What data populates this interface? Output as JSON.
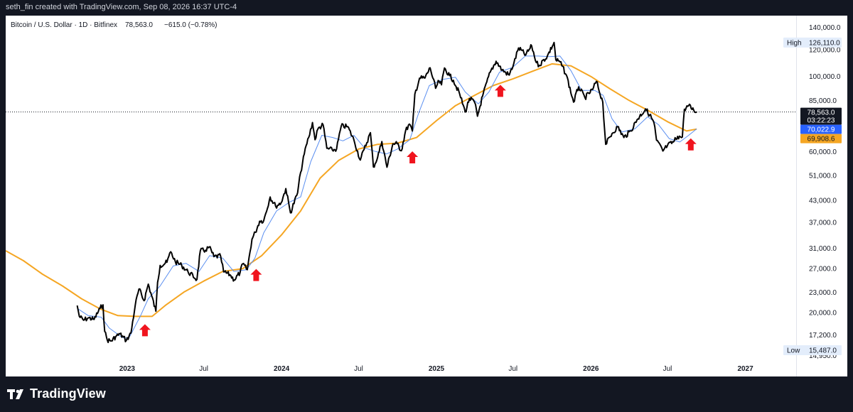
{
  "header": {
    "attribution": "seth_fin created with TradingView.com, Sep 08, 2026 16:37 UTC-4"
  },
  "legend": {
    "symbol": "Bitcoin / U.S. Dollar · 1D · Bitfinex",
    "last": "78,563.0",
    "change": "−615.0 (−0.78%)"
  },
  "brand": {
    "name": "TradingView"
  },
  "colors": {
    "price": "#000000",
    "ma_fast": "#5b8ff0",
    "ma_slow": "#f5a623",
    "arrow": "#f0141e",
    "last_bg": "#131722",
    "fast_bg": "#2962ff",
    "slow_bg": "#f5a623",
    "hl_bg": "#e3edfb"
  },
  "chart_data": {
    "type": "line",
    "y_scale": "log",
    "ylim": [
      13200,
      150000
    ],
    "xlim": [
      "2022-03-20",
      "2027-05-01"
    ],
    "y_ticks": [
      "14,950.0",
      "17,200.0",
      "20,000.0",
      "23,000.0",
      "27,000.0",
      "31,000.0",
      "37,000.0",
      "43,000.0",
      "51,000.0",
      "60,000.0",
      "70,000.0",
      "85,000.0",
      "100,000.0",
      "120,000.0",
      "140,000.0"
    ],
    "x_ticks": [
      {
        "label": "2023",
        "date": "2023-01-01",
        "bold": true
      },
      {
        "label": "Jul",
        "date": "2023-07-01",
        "bold": false
      },
      {
        "label": "2024",
        "date": "2024-01-01",
        "bold": true
      },
      {
        "label": "Jul",
        "date": "2024-07-01",
        "bold": false
      },
      {
        "label": "2025",
        "date": "2025-01-01",
        "bold": true
      },
      {
        "label": "Jul",
        "date": "2025-07-01",
        "bold": false
      },
      {
        "label": "2026",
        "date": "2026-01-01",
        "bold": true
      },
      {
        "label": "Jul",
        "date": "2026-07-01",
        "bold": false
      },
      {
        "label": "2027",
        "date": "2027-01-01",
        "bold": true
      }
    ],
    "series": [
      {
        "key": "price",
        "points": [
          [
            "2022-09-05",
            21000
          ],
          [
            "2022-09-10",
            19500
          ],
          [
            "2022-09-20",
            19000
          ],
          [
            "2022-10-01",
            19300
          ],
          [
            "2022-10-15",
            19100
          ],
          [
            "2022-10-29",
            20600
          ],
          [
            "2022-11-05",
            21100
          ],
          [
            "2022-11-09",
            17600
          ],
          [
            "2022-11-15",
            16600
          ],
          [
            "2022-11-25",
            16500
          ],
          [
            "2022-12-05",
            17000
          ],
          [
            "2022-12-15",
            17300
          ],
          [
            "2022-12-30",
            16550
          ],
          [
            "2023-01-10",
            17400
          ],
          [
            "2023-01-20",
            21000
          ],
          [
            "2023-01-29",
            23500
          ],
          [
            "2023-02-10",
            21700
          ],
          [
            "2023-02-20",
            24300
          ],
          [
            "2023-03-10",
            20200
          ],
          [
            "2023-03-14",
            24600
          ],
          [
            "2023-03-20",
            27600
          ],
          [
            "2023-04-05",
            28200
          ],
          [
            "2023-04-14",
            30300
          ],
          [
            "2023-04-25",
            28300
          ],
          [
            "2023-05-10",
            27600
          ],
          [
            "2023-05-25",
            26400
          ],
          [
            "2023-06-15",
            25100
          ],
          [
            "2023-06-23",
            30500
          ],
          [
            "2023-07-05",
            30600
          ],
          [
            "2023-07-14",
            31300
          ],
          [
            "2023-07-25",
            29300
          ],
          [
            "2023-08-10",
            29400
          ],
          [
            "2023-08-17",
            26400
          ],
          [
            "2023-09-01",
            25900
          ],
          [
            "2023-09-11",
            25000
          ],
          [
            "2023-09-25",
            26300
          ],
          [
            "2023-10-01",
            27900
          ],
          [
            "2023-10-12",
            26800
          ],
          [
            "2023-10-23",
            33000
          ],
          [
            "2023-10-31",
            34600
          ],
          [
            "2023-11-10",
            37300
          ],
          [
            "2023-11-20",
            37500
          ],
          [
            "2023-12-05",
            44000
          ],
          [
            "2023-12-18",
            41300
          ],
          [
            "2023-12-31",
            42300
          ],
          [
            "2024-01-11",
            46600
          ],
          [
            "2024-01-22",
            39500
          ],
          [
            "2024-02-08",
            45300
          ],
          [
            "2024-02-15",
            52000
          ],
          [
            "2024-02-28",
            62500
          ],
          [
            "2024-03-05",
            66000
          ],
          [
            "2024-03-14",
            73100
          ],
          [
            "2024-03-20",
            65000
          ],
          [
            "2024-03-27",
            70000
          ],
          [
            "2024-04-08",
            72000
          ],
          [
            "2024-04-17",
            61300
          ],
          [
            "2024-04-30",
            60600
          ],
          [
            "2024-05-10",
            61000
          ],
          [
            "2024-05-21",
            71400
          ],
          [
            "2024-06-05",
            71100
          ],
          [
            "2024-06-20",
            64900
          ],
          [
            "2024-07-05",
            56600
          ],
          [
            "2024-07-14",
            60800
          ],
          [
            "2024-07-29",
            68200
          ],
          [
            "2024-08-05",
            54000
          ],
          [
            "2024-08-15",
            57700
          ],
          [
            "2024-08-25",
            64200
          ],
          [
            "2024-09-06",
            53900
          ],
          [
            "2024-09-20",
            63200
          ],
          [
            "2024-09-30",
            63300
          ],
          [
            "2024-10-10",
            60300
          ],
          [
            "2024-10-20",
            69000
          ],
          [
            "2024-10-29",
            72300
          ],
          [
            "2024-11-05",
            69000
          ],
          [
            "2024-11-11",
            88700
          ],
          [
            "2024-11-22",
            98900
          ],
          [
            "2024-12-05",
            99000
          ],
          [
            "2024-12-17",
            106100
          ],
          [
            "2024-12-30",
            92300
          ],
          [
            "2025-01-07",
            96900
          ],
          [
            "2025-01-13",
            94500
          ],
          [
            "2025-01-20",
            106000
          ],
          [
            "2025-02-01",
            100600
          ],
          [
            "2025-02-10",
            97500
          ],
          [
            "2025-02-25",
            88700
          ],
          [
            "2025-03-10",
            78500
          ],
          [
            "2025-03-20",
            86000
          ],
          [
            "2025-04-01",
            84000
          ],
          [
            "2025-04-08",
            76300
          ],
          [
            "2025-04-20",
            87500
          ],
          [
            "2025-05-08",
            103000
          ],
          [
            "2025-05-22",
            111000
          ],
          [
            "2025-06-05",
            104500
          ],
          [
            "2025-06-22",
            101000
          ],
          [
            "2025-07-03",
            109500
          ],
          [
            "2025-07-14",
            121500
          ],
          [
            "2025-07-31",
            115800
          ],
          [
            "2025-08-14",
            123300
          ],
          [
            "2025-08-25",
            110000
          ],
          [
            "2025-09-01",
            108000
          ],
          [
            "2025-09-20",
            115000
          ],
          [
            "2025-10-06",
            126110
          ],
          [
            "2025-10-10",
            112000
          ],
          [
            "2025-10-20",
            110500
          ],
          [
            "2025-11-04",
            101000
          ],
          [
            "2025-11-21",
            84000
          ],
          [
            "2025-12-03",
            93200
          ],
          [
            "2025-12-18",
            86500
          ],
          [
            "2026-01-05",
            91500
          ],
          [
            "2026-01-14",
            96800
          ],
          [
            "2026-01-29",
            84000
          ],
          [
            "2026-02-05",
            63000
          ],
          [
            "2026-02-20",
            67800
          ],
          [
            "2026-03-05",
            71000
          ],
          [
            "2026-03-20",
            66000
          ],
          [
            "2026-04-05",
            69000
          ],
          [
            "2026-04-20",
            74500
          ],
          [
            "2026-05-10",
            80200
          ],
          [
            "2026-05-20",
            77000
          ],
          [
            "2026-05-30",
            73000
          ],
          [
            "2026-06-05",
            64800
          ],
          [
            "2026-06-20",
            60200
          ],
          [
            "2026-07-01",
            62500
          ],
          [
            "2026-07-15",
            64000
          ],
          [
            "2026-07-25",
            66500
          ],
          [
            "2026-08-05",
            66200
          ],
          [
            "2026-08-10",
            80000
          ],
          [
            "2026-08-20",
            82000
          ],
          [
            "2026-09-01",
            79500
          ],
          [
            "2026-09-08",
            78563
          ]
        ]
      },
      {
        "key": "ma_fast",
        "points": [
          [
            "2022-09-05",
            20600
          ],
          [
            "2022-10-01",
            19600
          ],
          [
            "2022-11-01",
            19400
          ],
          [
            "2022-11-20",
            18000
          ],
          [
            "2022-12-20",
            16900
          ],
          [
            "2023-01-05",
            16800
          ],
          [
            "2023-02-01",
            19500
          ],
          [
            "2023-02-20",
            22000
          ],
          [
            "2023-03-20",
            24000
          ],
          [
            "2023-04-20",
            27500
          ],
          [
            "2023-05-20",
            28000
          ],
          [
            "2023-06-20",
            26500
          ],
          [
            "2023-07-15",
            29500
          ],
          [
            "2023-08-15",
            29000
          ],
          [
            "2023-09-10",
            26500
          ],
          [
            "2023-10-10",
            26800
          ],
          [
            "2023-10-30",
            29000
          ],
          [
            "2023-11-20",
            34500
          ],
          [
            "2023-12-20",
            40000
          ],
          [
            "2024-01-20",
            42500
          ],
          [
            "2024-02-15",
            44000
          ],
          [
            "2024-03-10",
            56000
          ],
          [
            "2024-04-05",
            67000
          ],
          [
            "2024-05-01",
            66000
          ],
          [
            "2024-05-25",
            64500
          ],
          [
            "2024-06-20",
            67000
          ],
          [
            "2024-07-15",
            61500
          ],
          [
            "2024-08-10",
            60000
          ],
          [
            "2024-09-05",
            59000
          ],
          [
            "2024-10-01",
            61000
          ],
          [
            "2024-10-30",
            65000
          ],
          [
            "2024-11-20",
            78000
          ],
          [
            "2024-12-15",
            94000
          ],
          [
            "2025-01-15",
            98000
          ],
          [
            "2025-02-15",
            99500
          ],
          [
            "2025-03-10",
            90000
          ],
          [
            "2025-04-10",
            83000
          ],
          [
            "2025-05-05",
            90000
          ],
          [
            "2025-05-30",
            103000
          ],
          [
            "2025-06-30",
            106500
          ],
          [
            "2025-07-30",
            115000
          ],
          [
            "2025-08-30",
            115000
          ],
          [
            "2025-09-25",
            114500
          ],
          [
            "2025-10-20",
            115000
          ],
          [
            "2025-11-15",
            104000
          ],
          [
            "2025-12-10",
            91000
          ],
          [
            "2026-01-10",
            91000
          ],
          [
            "2026-01-30",
            88000
          ],
          [
            "2026-02-20",
            75000
          ],
          [
            "2026-03-15",
            68500
          ],
          [
            "2026-04-15",
            70000
          ],
          [
            "2026-05-15",
            76000
          ],
          [
            "2026-06-10",
            72000
          ],
          [
            "2026-07-05",
            65500
          ],
          [
            "2026-07-30",
            64000
          ],
          [
            "2026-08-20",
            67000
          ],
          [
            "2026-09-08",
            70022.9
          ]
        ]
      },
      {
        "key": "ma_slow",
        "points": [
          [
            "2022-03-20",
            30500
          ],
          [
            "2022-05-01",
            28500
          ],
          [
            "2022-06-15",
            26000
          ],
          [
            "2022-08-01",
            24000
          ],
          [
            "2022-09-15",
            22000
          ],
          [
            "2022-10-30",
            20500
          ],
          [
            "2022-12-10",
            19600
          ],
          [
            "2023-01-20",
            19500
          ],
          [
            "2023-03-01",
            19500
          ],
          [
            "2023-04-01",
            21000
          ],
          [
            "2023-05-15",
            23000
          ],
          [
            "2023-07-01",
            24800
          ],
          [
            "2023-08-15",
            26500
          ],
          [
            "2023-10-01",
            27000
          ],
          [
            "2023-11-15",
            29500
          ],
          [
            "2024-01-01",
            34000
          ],
          [
            "2024-02-15",
            40000
          ],
          [
            "2024-04-01",
            50000
          ],
          [
            "2024-05-15",
            56500
          ],
          [
            "2024-07-01",
            61000
          ],
          [
            "2024-08-15",
            63000
          ],
          [
            "2024-10-01",
            63500
          ],
          [
            "2024-11-15",
            66000
          ],
          [
            "2025-01-01",
            74000
          ],
          [
            "2025-02-15",
            82000
          ],
          [
            "2025-04-01",
            88000
          ],
          [
            "2025-05-15",
            94000
          ],
          [
            "2025-07-01",
            98500
          ],
          [
            "2025-08-15",
            103500
          ],
          [
            "2025-10-01",
            109000
          ],
          [
            "2025-11-15",
            107500
          ],
          [
            "2026-01-01",
            100000
          ],
          [
            "2026-02-15",
            92000
          ],
          [
            "2026-04-01",
            85000
          ],
          [
            "2026-05-15",
            79500
          ],
          [
            "2026-07-01",
            73500
          ],
          [
            "2026-08-15",
            69000
          ],
          [
            "2026-09-08",
            69908.6
          ]
        ]
      }
    ],
    "markers": [
      {
        "date": "2023-02-12",
        "value": 17700,
        "label": "up-arrow"
      },
      {
        "date": "2023-11-02",
        "value": 25800,
        "label": "up-arrow"
      },
      {
        "date": "2024-11-05",
        "value": 57500,
        "label": "up-arrow"
      },
      {
        "date": "2025-06-01",
        "value": 90500,
        "label": "up-arrow"
      },
      {
        "date": "2026-08-25",
        "value": 62800,
        "label": "up-arrow"
      }
    ],
    "price_labels": {
      "last_price": "78,563.0",
      "countdown": "03:22:23",
      "ma_fast_value": "70,022.9",
      "ma_slow_value": "69,908.6",
      "high_label": "High",
      "high_value": "126,110.0",
      "low_label": "Low",
      "low_value": "15,487.0",
      "last_price_num": 78563,
      "ma_fast_num": 70022.9,
      "ma_slow_num": 69908.6,
      "high_num": 126110,
      "low_num": 15487
    }
  }
}
